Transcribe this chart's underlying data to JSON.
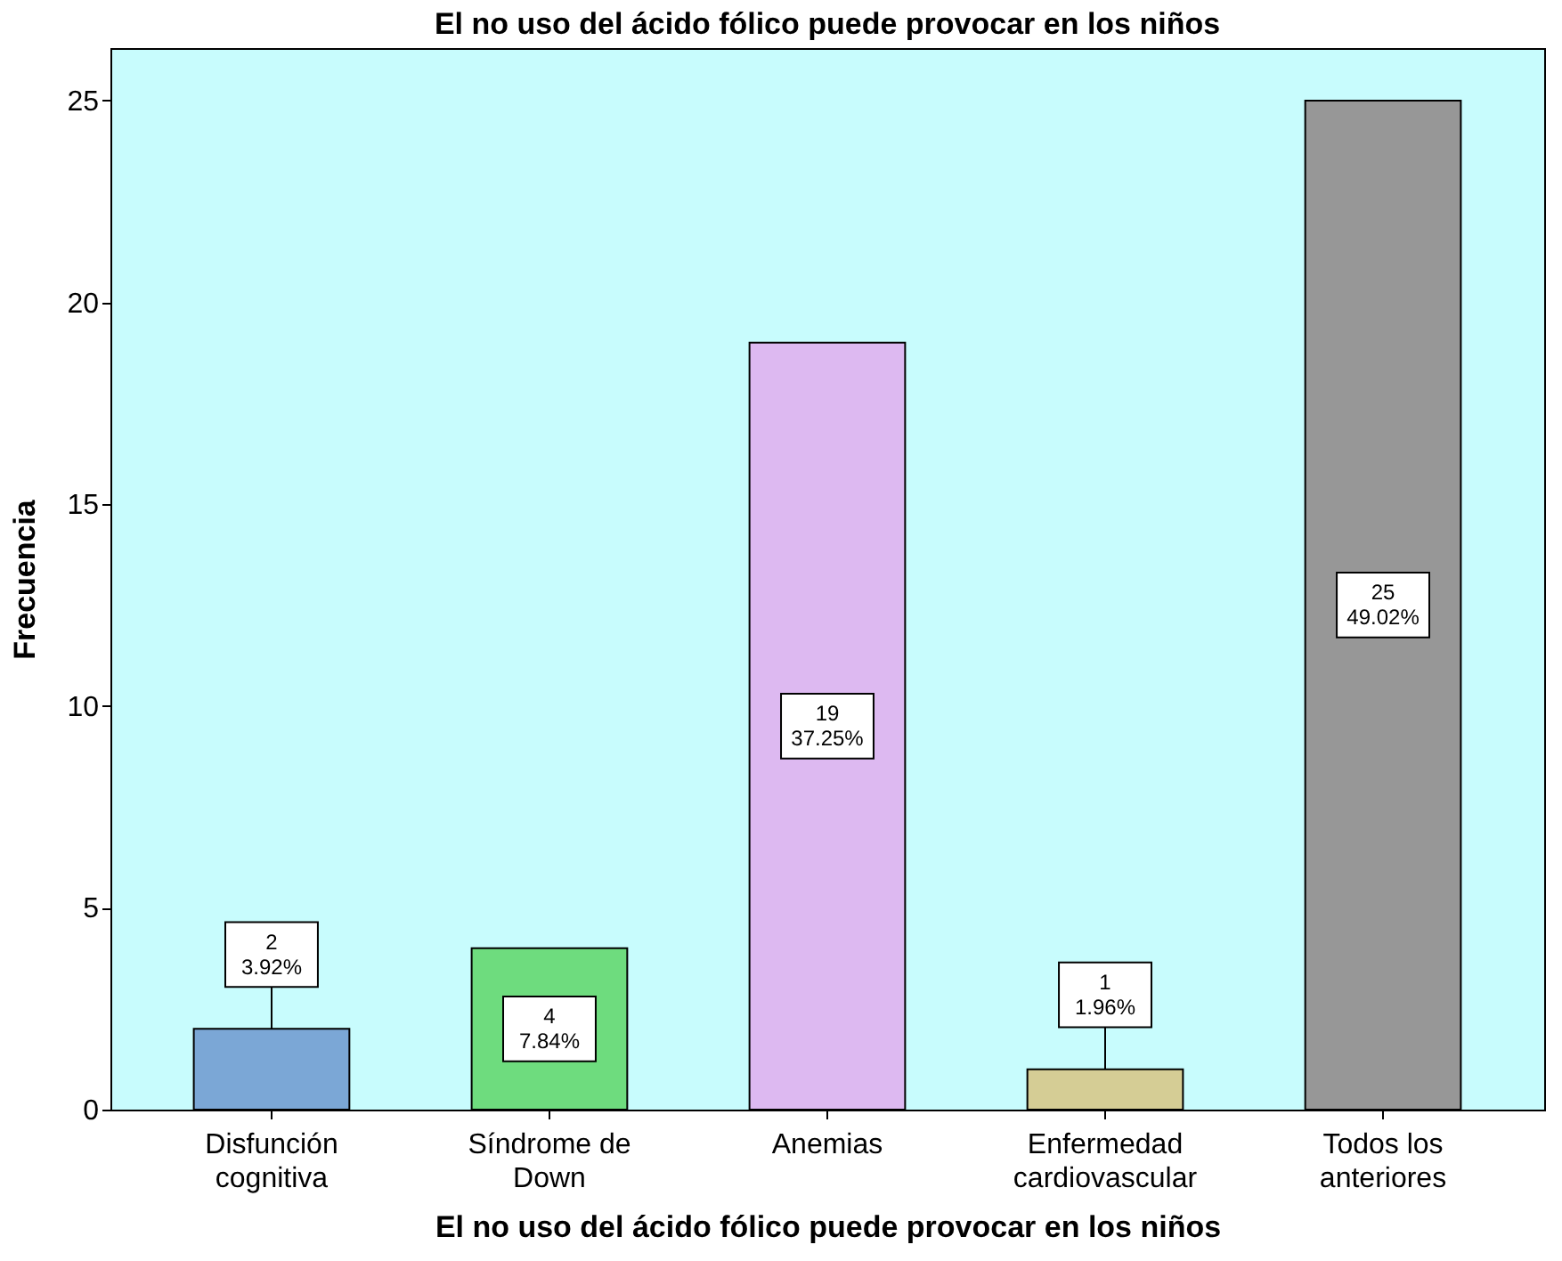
{
  "chart_data": {
    "type": "bar",
    "title": "El no uso del ácido fólico puede provocar en los niños",
    "xlabel": "El no uso del ácido fólico puede provocar en los niños",
    "ylabel": "Frecuencia",
    "categories": [
      "Disfunción cognitiva",
      "Síndrome de Down",
      "Anemias",
      "Enfermedad cardiovascular",
      "Todos los anteriores"
    ],
    "values": [
      2,
      4,
      19,
      1,
      25
    ],
    "colors": [
      "#7ba7d6",
      "#6edc7e",
      "#ddb9f1",
      "#d5cd95",
      "#979797"
    ],
    "value_labels": [
      "2\n3.92%",
      "4\n7.84%",
      "19\n37.25%",
      "1\n1.96%",
      "25\n49.02%"
    ],
    "ylim": [
      0,
      26.3
    ],
    "yticks": [
      0,
      5,
      10,
      15,
      20,
      25
    ],
    "grid": false
  }
}
